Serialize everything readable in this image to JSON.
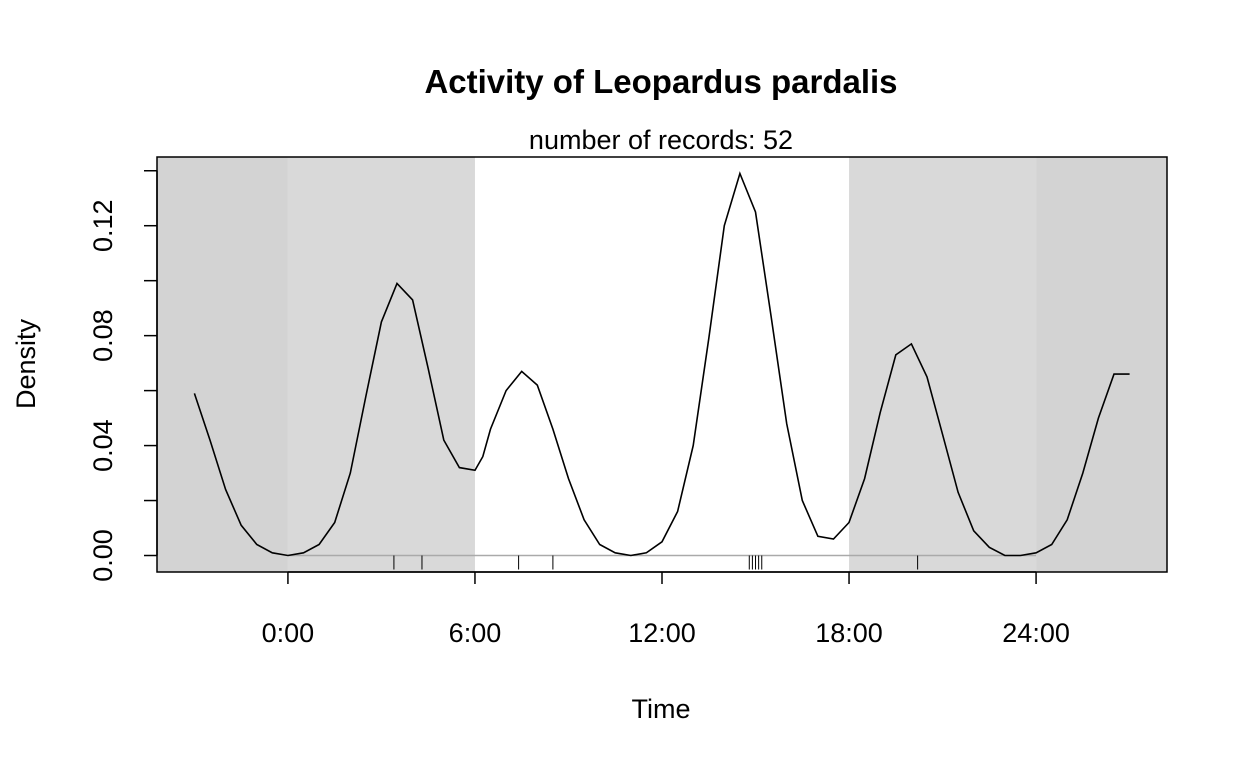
{
  "chart_data": {
    "type": "line",
    "title": "Activity of Leopardus pardalis",
    "subtitle": "number of records: 52",
    "xlabel": "Time",
    "ylabel": "Density",
    "xlim": [
      -4.2,
      28.2
    ],
    "ylim": [
      -0.006,
      0.145
    ],
    "x_ticks": [
      {
        "value": 0,
        "label": "0:00"
      },
      {
        "value": 6,
        "label": "6:00"
      },
      {
        "value": 12,
        "label": "12:00"
      },
      {
        "value": 18,
        "label": "18:00"
      },
      {
        "value": 24,
        "label": "24:00"
      }
    ],
    "y_ticks": [
      {
        "value": 0.0,
        "label": "0.00"
      },
      {
        "value": 0.04,
        "label": "0.04"
      },
      {
        "value": 0.08,
        "label": "0.08"
      },
      {
        "value": 0.12,
        "label": "0.12"
      }
    ],
    "y_minor_ticks": [
      0.02,
      0.06,
      0.1,
      0.14
    ],
    "night_shading": [
      {
        "from": -4.2,
        "to": 0,
        "color": "#d3d3d3"
      },
      {
        "from": 0,
        "to": 6,
        "color": "#d9d9d9"
      },
      {
        "from": 18,
        "to": 24,
        "color": "#d9d9d9"
      },
      {
        "from": 24,
        "to": 28.2,
        "color": "#d3d3d3"
      }
    ],
    "baseline_range": [
      0,
      24
    ],
    "density": {
      "x": [
        -3.0,
        -2.5,
        -2.0,
        -1.5,
        -1.0,
        -0.5,
        0.0,
        0.5,
        1.0,
        1.5,
        2.0,
        2.5,
        3.0,
        3.5,
        4.0,
        4.5,
        5.0,
        5.5,
        6.0,
        6.25,
        6.5,
        7.0,
        7.5,
        8.0,
        8.5,
        9.0,
        9.5,
        10.0,
        10.5,
        11.0,
        11.5,
        12.0,
        12.5,
        13.0,
        13.5,
        14.0,
        14.5,
        15.0,
        15.5,
        16.0,
        16.5,
        17.0,
        17.5,
        18.0,
        18.5,
        19.0,
        19.5,
        20.0,
        20.5,
        21.0,
        21.5,
        22.0,
        22.5,
        23.0,
        23.5,
        24.0,
        24.5,
        25.0,
        25.5,
        26.0,
        26.5,
        27.0
      ],
      "y": [
        0.059,
        0.042,
        0.024,
        0.011,
        0.004,
        0.001,
        0.0,
        0.001,
        0.004,
        0.012,
        0.03,
        0.058,
        0.085,
        0.099,
        0.093,
        0.068,
        0.042,
        0.032,
        0.031,
        0.036,
        0.046,
        0.06,
        0.067,
        0.062,
        0.046,
        0.028,
        0.013,
        0.004,
        0.001,
        0.0,
        0.001,
        0.005,
        0.016,
        0.04,
        0.079,
        0.12,
        0.139,
        0.125,
        0.087,
        0.048,
        0.02,
        0.007,
        0.006,
        0.012,
        0.028,
        0.052,
        0.073,
        0.077,
        0.065,
        0.044,
        0.023,
        0.009,
        0.003,
        0.0,
        0.0,
        0.001,
        0.004,
        0.013,
        0.03,
        0.05,
        0.066,
        0.066
      ]
    },
    "rug": [
      3.4,
      4.3,
      7.4,
      8.5,
      14.8,
      14.9,
      15.0,
      15.1,
      15.2,
      20.2
    ]
  }
}
